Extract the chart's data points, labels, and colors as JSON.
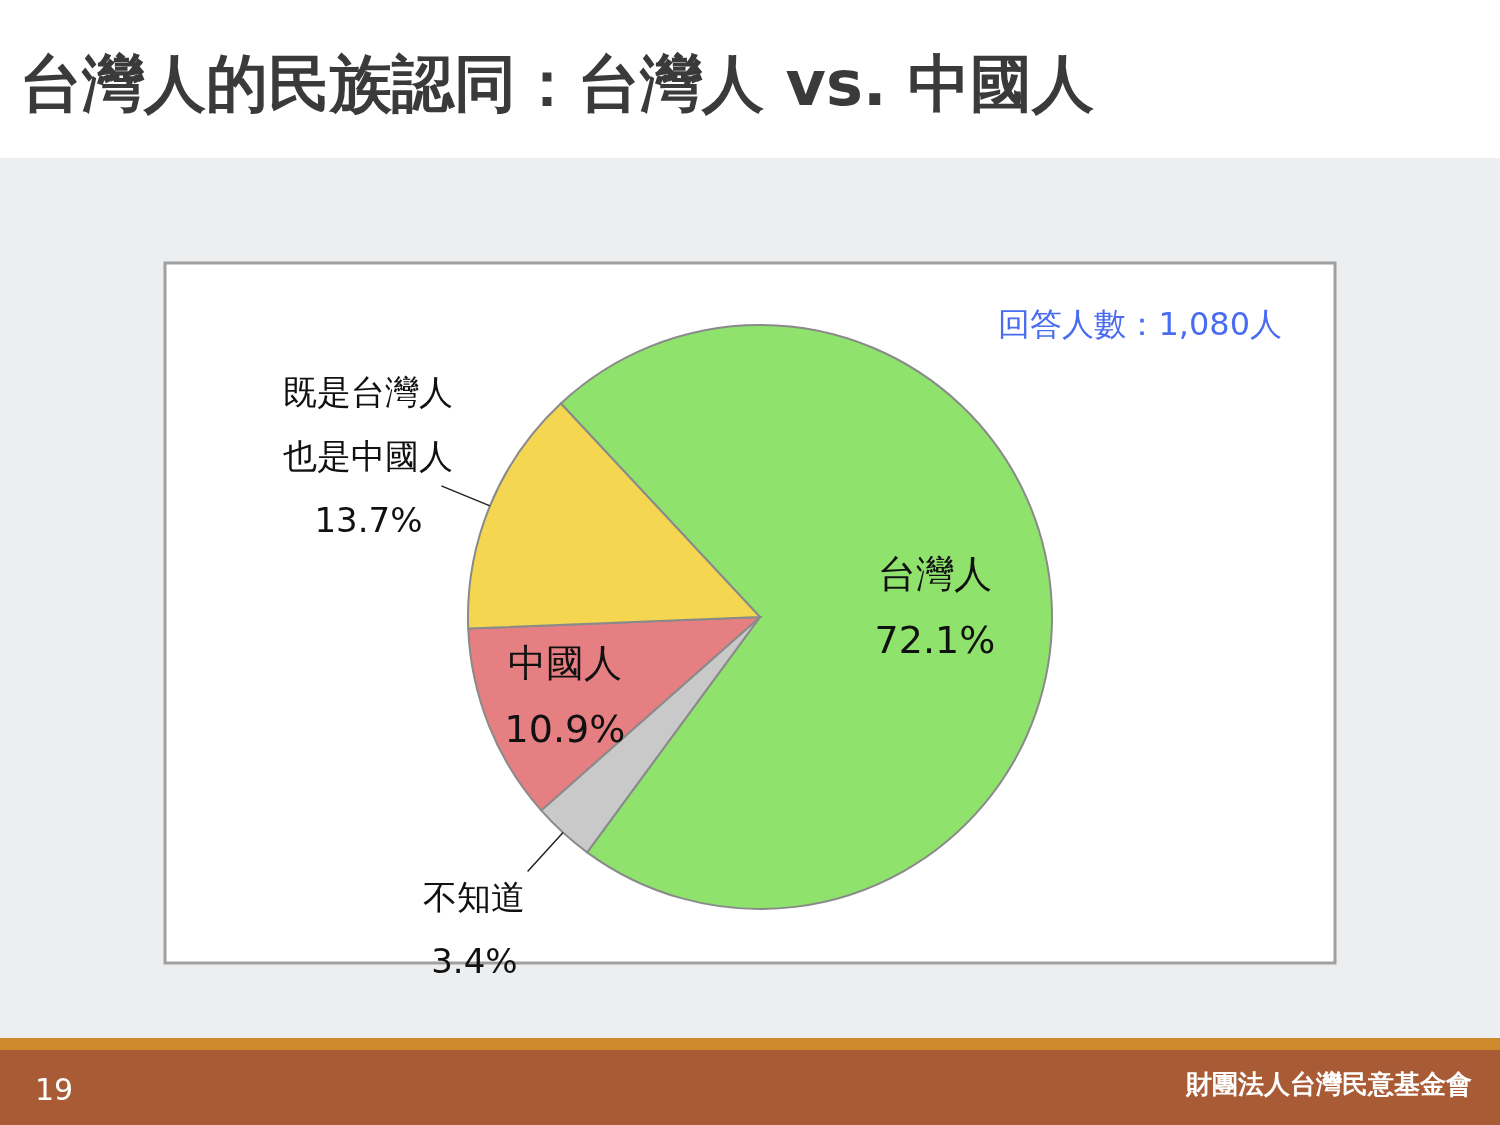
{
  "chart_data": {
    "type": "pie",
    "title": "台灣人的民族認同：台灣人 vs. 中國人",
    "categories": [
      "台灣人",
      "不知道",
      "中國人",
      "既是台灣人也是中國人"
    ],
    "values": [
      72.1,
      3.4,
      10.9,
      13.7
    ],
    "colors": [
      "#8fe36c",
      "#c9c9c9",
      "#e67f82",
      "#f4d650"
    ],
    "value_labels": [
      "72.1%",
      "3.4%",
      "10.9%",
      "13.7%"
    ],
    "annotations": [
      "回答人數：1,080人",
      "19",
      "財團法人台灣民意基金會"
    ]
  }
}
